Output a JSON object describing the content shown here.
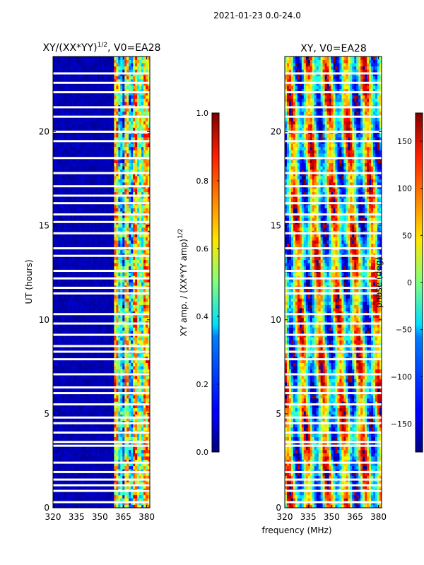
{
  "suptitle": "2021-01-23 0.0-24.0",
  "shared_xlabel": "frequency (MHz)",
  "chart_data": [
    {
      "type": "heatmap",
      "title": "XY/(XX*YY)",
      "title_exponent": "1/2",
      "title_suffix": ", V0=EA28",
      "xlabel": "",
      "ylabel": "UT (hours)",
      "x_ticks": [
        "320",
        "335",
        "350",
        "365",
        "380"
      ],
      "x_tick_values": [
        320,
        335,
        350,
        365,
        380
      ],
      "y_ticks": [
        "0",
        "5",
        "10",
        "15",
        "20"
      ],
      "y_tick_values": [
        0,
        5,
        10,
        15,
        20
      ],
      "xlim": [
        320,
        382
      ],
      "ylim": [
        0,
        24
      ],
      "colorbar": {
        "label": "XY amp. / (XX*YY amp)",
        "label_exponent": "1/2",
        "ticks": [
          "0.0",
          "0.2",
          "0.4",
          "0.6",
          "0.8",
          "1.0"
        ],
        "tick_values": [
          0.0,
          0.2,
          0.4,
          0.6,
          0.8,
          1.0
        ],
        "range": [
          0.0,
          1.0
        ],
        "colormap": "jet"
      },
      "active_band_mhz": [
        359,
        381
      ],
      "flagged_hours": [
        0.3,
        0.9,
        1.2,
        1.5,
        1.9,
        2.4,
        3.3,
        3.5,
        4.0,
        4.5,
        4.8,
        5.5,
        6.1,
        6.4,
        7.1,
        7.9,
        8.3,
        8.6,
        9.2,
        9.8,
        10.3,
        11.4,
        11.7,
        12.2,
        12.6,
        13.4,
        13.8,
        14.6,
        15.2,
        15.6,
        16.2,
        16.6,
        17.1,
        17.8,
        18.6,
        19.5,
        20.0,
        20.8,
        21.3,
        22.1,
        22.6,
        23.1
      ]
    },
    {
      "type": "heatmap",
      "title": "XY, V0=EA28",
      "xlabel": "frequency (MHz)",
      "ylabel": "",
      "x_ticks": [
        "320",
        "335",
        "350",
        "365",
        "380"
      ],
      "x_tick_values": [
        320,
        335,
        350,
        365,
        380
      ],
      "y_ticks": [
        "0",
        "5",
        "10",
        "15",
        "20"
      ],
      "y_tick_values": [
        0,
        5,
        10,
        15,
        20
      ],
      "xlim": [
        320,
        382
      ],
      "ylim": [
        0,
        24
      ],
      "colorbar": {
        "label": "phase (deg)",
        "ticks": [
          "−150",
          "−100",
          "−50",
          "0",
          "50",
          "100",
          "150"
        ],
        "tick_values": [
          -150,
          -100,
          -50,
          0,
          50,
          100,
          150
        ],
        "range": [
          -180,
          180
        ],
        "colormap": "jet"
      },
      "flagged_hours": [
        0.3,
        0.9,
        1.2,
        1.5,
        1.9,
        2.4,
        3.3,
        3.5,
        4.0,
        4.5,
        4.8,
        5.5,
        6.1,
        6.4,
        7.1,
        7.9,
        8.3,
        8.6,
        9.2,
        9.8,
        10.3,
        11.4,
        11.7,
        12.2,
        12.6,
        13.4,
        13.8,
        14.6,
        15.2,
        15.6,
        16.2,
        16.6,
        17.1,
        17.8,
        18.6,
        19.5,
        20.0,
        20.8,
        21.3,
        22.1,
        22.6,
        23.1
      ]
    }
  ]
}
